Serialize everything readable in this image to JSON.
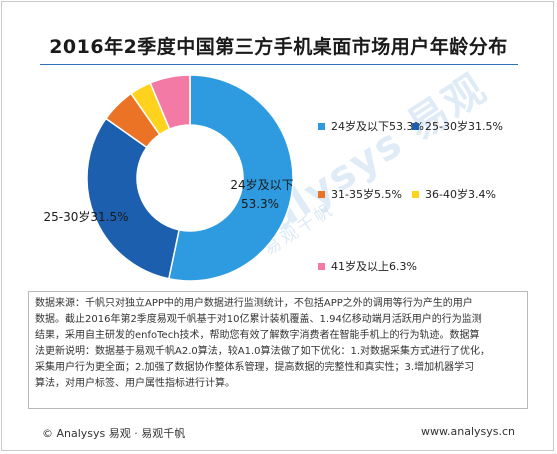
{
  "chart_data": {
    "type": "pie",
    "title": "2016年2季度中国第三方手机桌面市场用户年龄分布",
    "categories": [
      "24岁及以下",
      "25-30岁",
      "31-35岁",
      "36-40岁",
      "41岁及以上"
    ],
    "values": [
      53.3,
      31.5,
      5.5,
      3.4,
      6.3
    ],
    "legend": [
      "24岁及以下53.3%",
      "25-30岁31.5%",
      "31-35岁5.5%",
      "36-40岁3.4%",
      "41岁及以上6.3%"
    ],
    "colors": [
      "#2e9be0",
      "#1c5fae",
      "#ea7325",
      "#ffd21e",
      "#f47aa6"
    ],
    "data_labels": {
      "slice0_name": "24岁及以下",
      "slice0_value": "53.3%",
      "slice1": "25-30岁31.5%"
    },
    "legend_position": "right",
    "donut": true
  },
  "watermark": {
    "main": "Analysys 易观",
    "sub": "易观千帆"
  },
  "note": {
    "lines": [
      "数据来源：千帆只对独立APP中的用户数据进行监测统计，不包括APP之外的调用等行为产生的用户",
      "数据。截止2016年第2季度易观千帆基于对10亿累计装机覆盖、1.94亿移动端月活跃用户的行为监测",
      "结果，采用自主研发的enfoTech技术，帮助您有效了解数字消费者在智能手机上的行为轨迹。数据算",
      "法更新说明：数据基于易观千帆A2.0算法，较A1.0算法做了如下优化：1.对数据采集方式进行了优化，",
      "采集用户行为更全面；2.加强了数据协作整体系管理，提高数据的完整性和真实性；3.增加机器学习",
      "算法，对用户标签、用户属性指标进行计算。"
    ]
  },
  "footer": {
    "left": "© Analysys 易观 · 易观千帆",
    "right": "www.analysys.cn"
  }
}
